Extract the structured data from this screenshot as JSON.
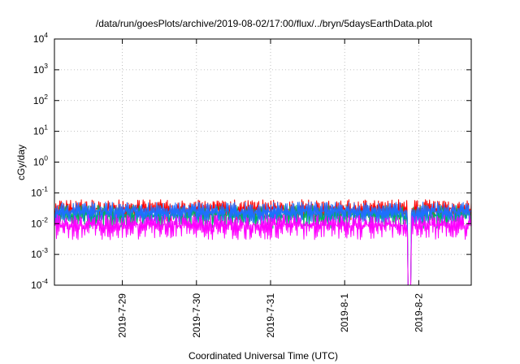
{
  "chart_data": {
    "type": "line",
    "title": "/data/run/goesPlots/archive/2019-08-02/17:00/flux/../bryn/5daysEarthData.plot",
    "xlabel": "Coordinated Universal Time (UTC)",
    "ylabel": "cGy/day",
    "y_scale": "log",
    "ylim": [
      0.0001,
      10000
    ],
    "xlim": [
      "2019-07-28 02:00",
      "2019-08-02 17:00"
    ],
    "grid": true,
    "legend": "none",
    "x_ticks": [
      {
        "date": "2019-07-29 00:00",
        "label": "2019-7-29"
      },
      {
        "date": "2019-07-30 00:00",
        "label": "2019-7-30"
      },
      {
        "date": "2019-07-31 00:00",
        "label": "2019-7-31"
      },
      {
        "date": "2019-08-01 00:00",
        "label": "2019-8-1"
      },
      {
        "date": "2019-08-02 00:00",
        "label": "2019-8-2"
      }
    ],
    "y_ticks": [
      {
        "value": 0.0001,
        "base": "10",
        "exp": "-4"
      },
      {
        "value": 0.001,
        "base": "10",
        "exp": "-3"
      },
      {
        "value": 0.01,
        "base": "10",
        "exp": "-2"
      },
      {
        "value": 0.1,
        "base": "10",
        "exp": "-1"
      },
      {
        "value": 1,
        "base": "10",
        "exp": "0"
      },
      {
        "value": 10,
        "base": "10",
        "exp": "1"
      },
      {
        "value": 100,
        "base": "10",
        "exp": "2"
      },
      {
        "value": 1000,
        "base": "10",
        "exp": "3"
      },
      {
        "value": 10000,
        "base": "10",
        "exp": "4"
      }
    ],
    "series": [
      {
        "color": "#ff0000",
        "typical_range": [
          0.012,
          0.06
        ]
      },
      {
        "color": "#00b060",
        "typical_range": [
          0.007,
          0.04
        ]
      },
      {
        "color": "#1e6fff",
        "typical_range": [
          0.01,
          0.05
        ]
      },
      {
        "color": "#ff00ff",
        "typical_range": [
          0.003,
          0.02
        ]
      }
    ],
    "events": [
      {
        "start": "2019-08-01 20:30",
        "end": "2019-08-01 21:30",
        "value": 0.0001
      }
    ]
  }
}
